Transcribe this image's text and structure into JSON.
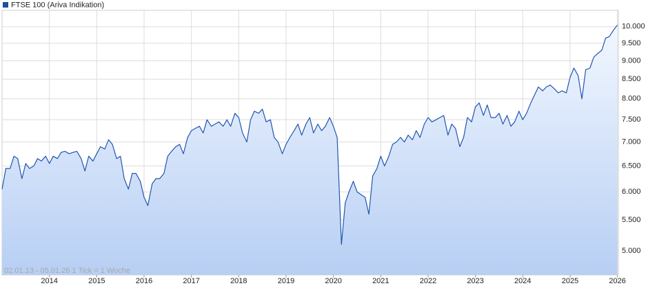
{
  "chart_data": {
    "type": "line",
    "legend_title": "FTSE 100 (Ariva Indikation)",
    "annotation": "02.01.13 - 05.01.26   1 Tick = 1 Woche",
    "log_scale": true,
    "grid": true,
    "x": [
      2013.0,
      2013.08,
      2013.17,
      2013.25,
      2013.33,
      2013.42,
      2013.5,
      2013.58,
      2013.67,
      2013.75,
      2013.83,
      2013.92,
      2014.0,
      2014.08,
      2014.17,
      2014.25,
      2014.33,
      2014.42,
      2014.5,
      2014.58,
      2014.67,
      2014.75,
      2014.83,
      2014.92,
      2015.0,
      2015.08,
      2015.17,
      2015.25,
      2015.33,
      2015.42,
      2015.5,
      2015.58,
      2015.67,
      2015.75,
      2015.83,
      2015.92,
      2016.0,
      2016.08,
      2016.17,
      2016.25,
      2016.33,
      2016.42,
      2016.5,
      2016.58,
      2016.67,
      2016.75,
      2016.83,
      2016.92,
      2017.0,
      2017.08,
      2017.17,
      2017.25,
      2017.33,
      2017.42,
      2017.5,
      2017.58,
      2017.67,
      2017.75,
      2017.83,
      2017.92,
      2018.0,
      2018.08,
      2018.17,
      2018.25,
      2018.33,
      2018.42,
      2018.5,
      2018.58,
      2018.67,
      2018.75,
      2018.83,
      2018.92,
      2019.0,
      2019.08,
      2019.17,
      2019.25,
      2019.33,
      2019.42,
      2019.5,
      2019.58,
      2019.67,
      2019.75,
      2019.83,
      2019.92,
      2020.0,
      2020.08,
      2020.17,
      2020.25,
      2020.33,
      2020.42,
      2020.5,
      2020.58,
      2020.67,
      2020.75,
      2020.83,
      2020.92,
      2021.0,
      2021.08,
      2021.17,
      2021.25,
      2021.33,
      2021.42,
      2021.5,
      2021.58,
      2021.67,
      2021.75,
      2021.83,
      2021.92,
      2022.0,
      2022.08,
      2022.17,
      2022.25,
      2022.33,
      2022.42,
      2022.5,
      2022.58,
      2022.67,
      2022.75,
      2022.83,
      2022.92,
      2023.0,
      2023.08,
      2023.17,
      2023.25,
      2023.33,
      2023.42,
      2023.5,
      2023.58,
      2023.67,
      2023.75,
      2023.83,
      2023.92,
      2024.0,
      2024.08,
      2024.17,
      2024.25,
      2024.33,
      2024.42,
      2024.5,
      2024.58,
      2024.67,
      2024.75,
      2024.83,
      2024.92,
      2025.0,
      2025.08,
      2025.17,
      2025.25,
      2025.33,
      2025.42,
      2025.5,
      2025.58,
      2025.67,
      2025.75,
      2025.83,
      2025.92,
      2026.0
    ],
    "series": [
      {
        "color": "#1f55b0",
        "values": [
          6050,
          6450,
          6450,
          6700,
          6650,
          6250,
          6550,
          6450,
          6500,
          6650,
          6600,
          6700,
          6550,
          6700,
          6650,
          6780,
          6800,
          6750,
          6780,
          6800,
          6650,
          6400,
          6700,
          6600,
          6750,
          6900,
          6850,
          7050,
          6950,
          6650,
          6700,
          6250,
          6050,
          6350,
          6350,
          6200,
          5900,
          5750,
          6150,
          6250,
          6250,
          6350,
          6700,
          6800,
          6900,
          6950,
          6750,
          7100,
          7250,
          7300,
          7350,
          7200,
          7500,
          7350,
          7400,
          7450,
          7350,
          7500,
          7350,
          7650,
          7550,
          7200,
          7000,
          7500,
          7700,
          7650,
          7750,
          7450,
          7500,
          7100,
          7000,
          6750,
          6950,
          7100,
          7250,
          7400,
          7150,
          7400,
          7550,
          7200,
          7400,
          7250,
          7350,
          7550,
          7350,
          7100,
          5100,
          5800,
          6000,
          6200,
          6000,
          5950,
          5900,
          5600,
          6300,
          6450,
          6700,
          6500,
          6700,
          6950,
          7000,
          7100,
          7000,
          7150,
          7050,
          7250,
          7100,
          7400,
          7550,
          7450,
          7500,
          7550,
          7600,
          7150,
          7400,
          7300,
          6900,
          7100,
          7550,
          7450,
          7800,
          7900,
          7600,
          7850,
          7550,
          7550,
          7650,
          7400,
          7600,
          7350,
          7450,
          7700,
          7500,
          7650,
          7900,
          8100,
          8300,
          8200,
          8300,
          8350,
          8250,
          8150,
          8200,
          8150,
          8550,
          8800,
          8600,
          8000,
          8750,
          8800,
          9100,
          9200,
          9300,
          9650,
          9700,
          9900,
          10050
        ]
      }
    ],
    "xlim": [
      2013.0,
      2026.02
    ],
    "xticks": [
      2014,
      2015,
      2016,
      2017,
      2018,
      2019,
      2020,
      2021,
      2022,
      2023,
      2024,
      2025,
      2026
    ],
    "ylim": [
      4640,
      10520
    ],
    "yticks": [
      {
        "value": 5000,
        "label": "5.000"
      },
      {
        "value": 5500,
        "label": "5.500"
      },
      {
        "value": 6000,
        "label": "6.000"
      },
      {
        "value": 6500,
        "label": "6.500"
      },
      {
        "value": 7000,
        "label": "7.000"
      },
      {
        "value": 7500,
        "label": "7.500"
      },
      {
        "value": 8000,
        "label": "8.000"
      },
      {
        "value": 8500,
        "label": "8.500"
      },
      {
        "value": 9000,
        "label": "9.000"
      },
      {
        "value": 9500,
        "label": "9.500"
      },
      {
        "value": 10000,
        "label": "10.000"
      }
    ]
  }
}
